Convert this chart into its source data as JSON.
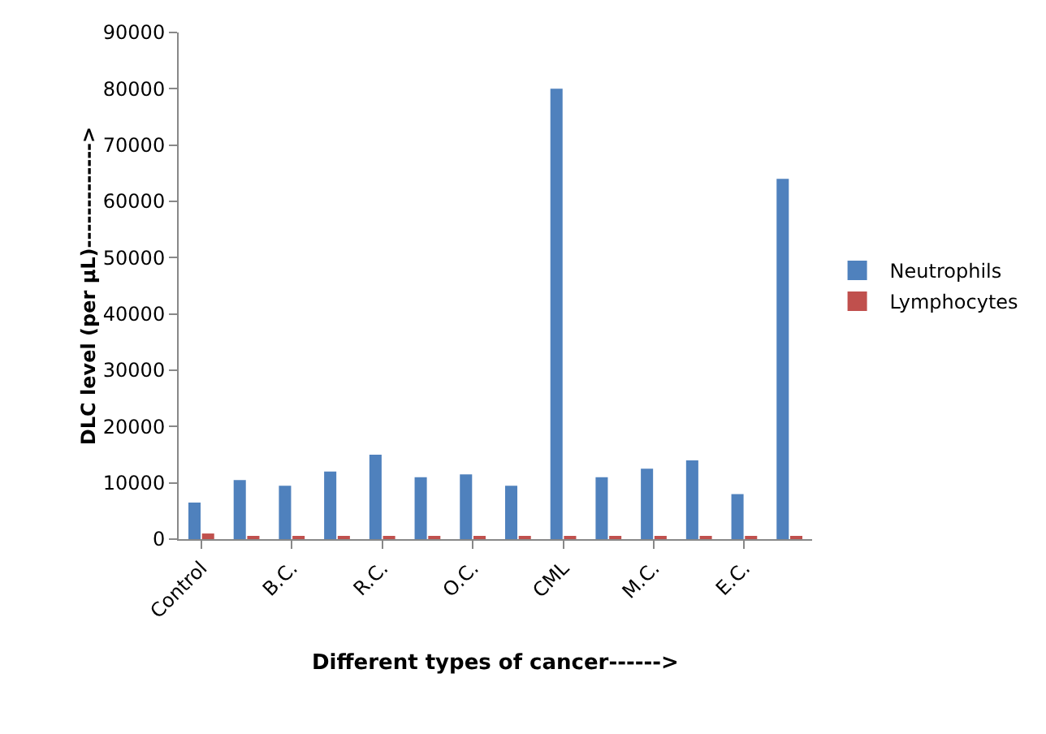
{
  "chart_data": {
    "type": "bar",
    "xlabel": "Different types of cancer------>",
    "ylabel": "DLC level (per µL)------------->",
    "categories": [
      "Control",
      null,
      "B.C.",
      null,
      "R.C.",
      null,
      "O.C.",
      null,
      "CML",
      null,
      "M.C.",
      null,
      "E.C.",
      null
    ],
    "series": [
      {
        "name": "Neutrophils",
        "color": "#4f81bd",
        "values": [
          6500,
          10500,
          9500,
          12000,
          15000,
          11000,
          11500,
          9500,
          80000,
          11000,
          12500,
          14000,
          8000,
          64000
        ]
      },
      {
        "name": "Lymphocytes",
        "color": "#c0504d",
        "values": [
          1000,
          500,
          500,
          500,
          500,
          500,
          500,
          500,
          500,
          500,
          500,
          500,
          500,
          500
        ]
      }
    ],
    "ylim": [
      0,
      90000
    ],
    "yticks": [
      0,
      10000,
      20000,
      30000,
      40000,
      50000,
      60000,
      70000,
      80000,
      90000
    ],
    "grid": false,
    "legend": "right"
  }
}
